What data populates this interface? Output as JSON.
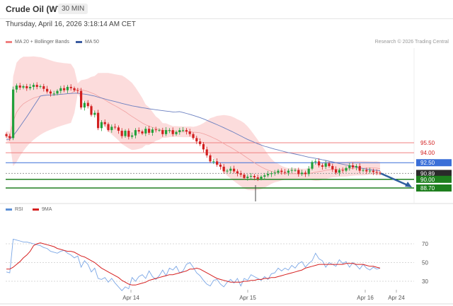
{
  "header": {
    "title": "Crude Oil (WTI)",
    "timeframe": "30 MIN"
  },
  "datetime": "Thursday, April 16, 2026 3:18:14 AM CET",
  "legend": {
    "bb_label": "MA 20 + Bollinger Bands",
    "ma50_label": "MA 50",
    "bb_color": "#f08080",
    "ma50_color": "#3a5ba0"
  },
  "source": "Research © 2026 Trading Central",
  "rsi_legend": {
    "rsi_label": "RSI",
    "ma_label": "9MA",
    "rsi_color": "#5b8fd6",
    "ma_color": "#d62020"
  },
  "colors": {
    "up": "#22a03a",
    "down": "#d22020",
    "resistance": "#f08080",
    "support": "#1e7f1e",
    "pivot": "#3a6fd8",
    "current": "#2a2a2a",
    "arrow": "#2f5f9f"
  },
  "chart_data": {
    "type": "candlestick",
    "price_levels": [
      {
        "label": "95.50",
        "value": 95.5,
        "kind": "resistance"
      },
      {
        "label": "94.00",
        "value": 94.0,
        "kind": "resistance"
      },
      {
        "label": "92.50",
        "value": 92.5,
        "kind": "pivot"
      },
      {
        "label": "90.89",
        "value": 90.89,
        "kind": "current"
      },
      {
        "label": "90.00",
        "value": 90.0,
        "kind": "support"
      },
      {
        "label": "88.70",
        "value": 88.7,
        "kind": "support"
      }
    ],
    "x_ticks": [
      "Apr 14",
      "Apr 15",
      "Apr 16",
      "Apr 24"
    ],
    "rsi_ticks": [
      "70",
      "50",
      "30"
    ],
    "closes": [
      96.5,
      96.2,
      103.5,
      104.1,
      103.8,
      104.0,
      103.7,
      103.9,
      104.2,
      103.9,
      104.0,
      103.6,
      103.2,
      102.9,
      102.9,
      103.3,
      103.7,
      103.4,
      103.9,
      103.7,
      103.4,
      103.3,
      100.8,
      101.5,
      101.0,
      99.7,
      100.0,
      97.7,
      98.6,
      98.3,
      97.4,
      97.9,
      97.8,
      97.3,
      96.5,
      97.3,
      96.4,
      96.6,
      97.4,
      97.2,
      96.9,
      97.6,
      97.0,
      97.5,
      97.4,
      97.4,
      96.8,
      97.4,
      97.4,
      96.8,
      97.1,
      97.4,
      97.4,
      97.2,
      96.8,
      96.2,
      95.7,
      95.3,
      94.5,
      93.6,
      92.7,
      92.7,
      92.2,
      91.9,
      91.2,
      91.3,
      91.6,
      91.2,
      90.9,
      90.7,
      90.2,
      90.4,
      90.5,
      90.3,
      90.1,
      90.4,
      90.6,
      90.8,
      90.9,
      91.0,
      91.3,
      91.1,
      91.0,
      91.3,
      91.4,
      91.4,
      90.8,
      91.0,
      90.8,
      91.6,
      92.6,
      92.7,
      92.1,
      91.9,
      92.4,
      92.0,
      91.5,
      91.0,
      91.4,
      91.3,
      91.7,
      92.1,
      91.8,
      92.0,
      91.3,
      91.4,
      91.2,
      91.3,
      91.1,
      91.0,
      90.9
    ],
    "rsi": [
      40,
      39,
      75,
      74,
      73,
      72,
      72,
      71,
      70,
      69,
      68,
      66,
      65,
      62,
      61,
      60,
      62,
      63,
      60,
      58,
      55,
      57,
      45,
      52,
      48,
      40,
      44,
      33,
      32,
      34,
      29,
      33,
      28,
      24,
      20,
      24,
      22,
      34,
      30,
      35,
      37,
      33,
      41,
      35,
      32,
      36,
      42,
      36,
      44,
      42,
      46,
      39,
      41,
      48,
      50,
      45,
      39,
      36,
      31,
      27,
      25,
      31,
      32,
      27,
      24,
      29,
      32,
      28,
      33,
      25,
      33,
      31,
      37,
      35,
      33,
      31,
      35,
      32,
      38,
      39,
      44,
      41,
      44,
      42,
      47,
      44,
      49,
      51,
      45,
      49,
      52,
      60,
      54,
      52,
      45,
      50,
      48,
      46,
      53,
      49,
      51,
      45,
      50,
      47,
      43,
      48,
      44,
      42,
      45,
      43,
      44
    ],
    "rsi_ma": [
      43,
      43,
      45,
      48,
      51,
      55,
      58,
      62,
      68,
      70,
      71,
      70,
      69,
      68,
      67,
      65,
      64,
      63,
      62,
      62,
      61,
      59,
      57,
      56,
      54,
      52,
      50,
      47,
      44,
      42,
      40,
      38,
      36,
      34,
      31,
      29,
      27,
      26,
      26,
      27,
      28,
      29,
      31,
      32,
      33,
      34,
      35,
      36,
      37,
      37,
      38,
      39,
      40,
      41,
      43,
      43,
      44,
      43,
      41,
      39,
      37,
      35,
      33,
      32,
      31,
      30,
      29,
      29,
      29,
      29,
      30,
      30,
      31,
      31,
      32,
      32,
      33,
      33,
      34,
      34,
      35,
      36,
      37,
      38,
      39,
      40,
      41,
      42,
      44,
      45,
      46,
      47,
      48,
      48,
      48,
      48,
      48,
      48,
      48,
      48,
      49,
      49,
      49,
      48,
      48,
      48,
      47,
      46,
      46,
      45,
      44
    ]
  }
}
